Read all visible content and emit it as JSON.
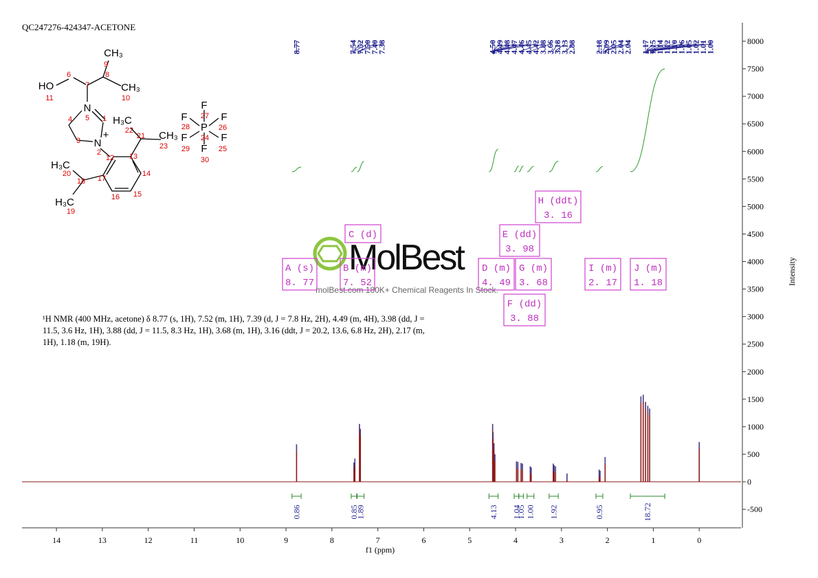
{
  "title": "QC247276-424347-ACETONE",
  "description": "¹H NMR (400 MHz, acetone) δ 8.77 (s, 1H), 7.52 (m, 1H), 7.39 (d, J = 7.8 Hz, 2H), 4.49 (m, 4H), 3.98 (dd, J = 11.5, 3.6 Hz, 1H), 3.88 (dd, J = 11.5, 8.3 Hz, 1H), 3.68 (m, 1H), 3.16 (ddt, J = 20.2, 13.6, 6.8 Hz, 2H), 2.17 (m, 1H), 1.18 (m, 19H).",
  "watermark": {
    "logo": "MolBest",
    "tagline": "molBest.com 180K+ Chemical Reagents In Stock."
  },
  "molecule": {
    "labels": [
      "CH₃",
      "HO",
      "CH₃",
      "N",
      "N",
      "+",
      "H₃C",
      "CH₃",
      "F",
      "F",
      "F",
      "P",
      "F",
      "F",
      "F",
      "H₃C",
      "H₃C"
    ],
    "numbers": [
      9,
      6,
      7,
      8,
      11,
      10,
      5,
      1,
      4,
      3,
      2,
      22,
      21,
      23,
      12,
      13,
      28,
      27,
      26,
      24,
      29,
      25,
      30,
      20,
      18,
      17,
      14,
      16,
      15,
      19
    ]
  },
  "chart_data": {
    "type": "nmr",
    "x_label": "f1 (ppm)",
    "y_label": "Intensity",
    "xlim": [
      14.75,
      -0.91
    ],
    "ylim": [
      -836,
      8337
    ],
    "xticks": [
      14,
      13,
      12,
      11,
      10,
      9,
      8,
      7,
      6,
      5,
      4,
      3,
      2,
      1,
      0
    ],
    "yticks": [
      -500,
      0,
      500,
      1000,
      1500,
      2000,
      2500,
      3000,
      3500,
      4000,
      4500,
      5000,
      5500,
      6000,
      6500,
      7000,
      7500,
      8000
    ],
    "peak_labels": [
      8.77,
      7.54,
      7.52,
      {
        "value": 7.5,
        "label": "7.50"
      },
      {
        "value": 7.4,
        "label": "7.40"
      },
      7.38,
      {
        "value": 4.5,
        "label": "4.50"
      },
      4.49,
      4.48,
      4.47,
      4.46,
      4.45,
      4.42,
      3.88,
      3.66,
      3.18,
      3.13,
      2.88,
      2.18,
      2.09,
      2.05,
      2.04,
      2.04,
      1.17,
      1.15,
      1.14,
      1.12,
      {
        "value": 1.1,
        "label": "1.10"
      },
      1.06,
      1.05,
      1.02,
      1.01,
      {
        "value": 1,
        "label": "1.00"
      }
    ],
    "peaks": {
      "x": [
        8.77,
        7.52,
        7.5,
        7.4,
        7.38,
        4.5,
        4.49,
        4.47,
        4.45,
        3.98,
        3.95,
        3.88,
        3.85,
        3.68,
        3.66,
        3.18,
        3.16,
        3.13,
        2.88,
        2.18,
        2.16,
        2.05,
        1.27,
        1.22,
        1.17,
        1.12,
        1.08,
        0
      ],
      "values": [
        680,
        350,
        420,
        1050,
        960,
        1050,
        900,
        700,
        500,
        370,
        360,
        340,
        330,
        280,
        260,
        330,
        300,
        280,
        150,
        220,
        200,
        450,
        1550,
        1580,
        1450,
        1380,
        1330,
        720
      ],
      "color": "#8b1a1a"
    },
    "integrals": [
      {
        "from": 8.87,
        "to": 8.67,
        "value": 0.86
      },
      {
        "from": 7.58,
        "to": 7.46,
        "value": 0.85
      },
      {
        "from": 7.45,
        "to": 7.3,
        "value": 1.89
      },
      {
        "from": 4.58,
        "to": 4.38,
        "value": 4.13
      },
      {
        "from": 4.03,
        "to": 3.93,
        "value": 1.04
      },
      {
        "from": 3.93,
        "to": 3.83,
        "value": 1.05
      },
      {
        "from": 3.75,
        "to": 3.6,
        "value": {
          "value": 1,
          "label": "1.00"
        }
      },
      {
        "from": 3.27,
        "to": 3.07,
        "value": 1.92
      },
      {
        "from": 2.25,
        "to": 2.1,
        "value": 0.95
      },
      {
        "from": 1.5,
        "to": 0.75,
        "value": 18.72
      }
    ],
    "multiplets": [
      {
        "label": "A (s)",
        "shift": "8. 77"
      },
      {
        "label": "B (m)",
        "shift": "7. 52"
      },
      {
        "label": "C (d)"
      },
      {
        "label": "D (m)",
        "shift": "4. 49"
      },
      {
        "label": "E (dd)",
        "shift": "3. 98"
      },
      {
        "label": "F (dd)",
        "shift": "3. 88"
      },
      {
        "label": "G (m)",
        "shift": "3. 68"
      },
      {
        "label": "H (ddt)",
        "shift": "3. 16"
      },
      {
        "label": "I (m)",
        "shift": "2. 17"
      },
      {
        "label": "J (m)",
        "shift": "1. 18"
      }
    ]
  }
}
